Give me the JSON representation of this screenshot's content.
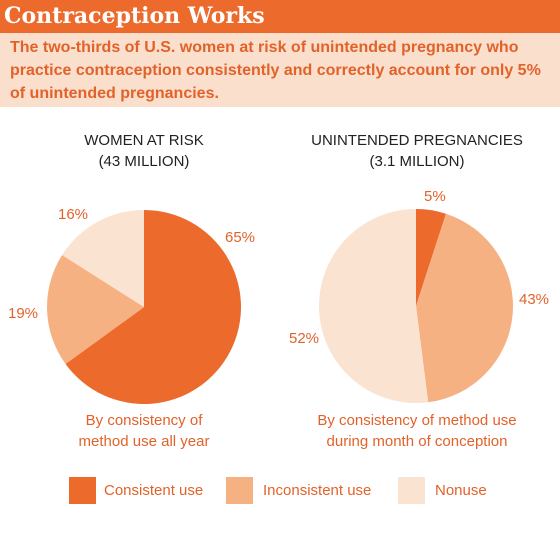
{
  "header": {
    "title": "Contraception Works",
    "subtitle": "The two-thirds of U.S. women at risk of unintended pregnancy who practice contraception consistently and correctly account for only 5% of unintended pregnancies."
  },
  "colors": {
    "accent": "#ec6a2c",
    "subtitle_bg": "#fadfcd",
    "consistent": "#ec6a2c",
    "inconsistent": "#f6b183",
    "nonuse": "#fbe3d1"
  },
  "chart_data": [
    {
      "type": "pie",
      "title_line1": "WOMEN AT RISK",
      "title_line2": "(43 MILLION)",
      "caption_line1": "By consistency of",
      "caption_line2": "method use all year",
      "slices": [
        {
          "name": "Consistent use",
          "value": 65,
          "label": "65%"
        },
        {
          "name": "Inconsistent use",
          "value": 19,
          "label": "19%"
        },
        {
          "name": "Nonuse",
          "value": 16,
          "label": "16%"
        }
      ]
    },
    {
      "type": "pie",
      "title_line1": "UNINTENDED PREGNANCIES",
      "title_line2": "(3.1 MILLION)",
      "caption_line1": "By consistency of method use",
      "caption_line2": "during month of conception",
      "slices": [
        {
          "name": "Consistent use",
          "value": 5,
          "label": "5%"
        },
        {
          "name": "Inconsistent use",
          "value": 43,
          "label": "43%"
        },
        {
          "name": "Nonuse",
          "value": 52,
          "label": "52%"
        }
      ]
    }
  ],
  "legend": [
    {
      "label": "Consistent use"
    },
    {
      "label": "Inconsistent use"
    },
    {
      "label": "Nonuse"
    }
  ]
}
